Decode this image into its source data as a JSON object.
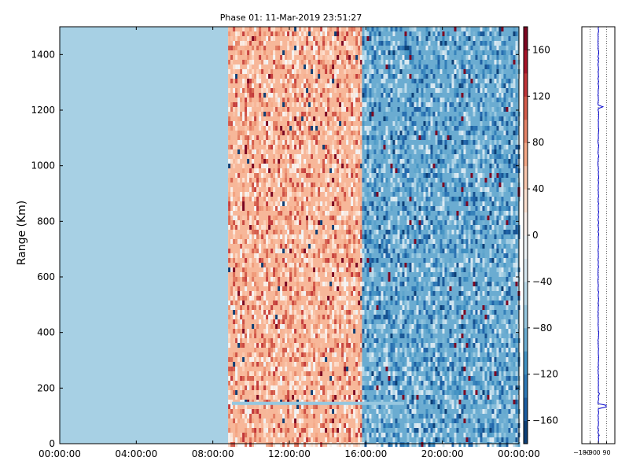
{
  "chart_data": [
    {
      "type": "heatmap",
      "title": "Phase 01: 11-Mar-2019 23:51:27",
      "ylabel": "Range (Km)",
      "xlabel": "",
      "x_tick_labels": [
        "00:00:00",
        "04:00:00",
        "08:00:00",
        "12:00:00",
        "16:00:00",
        "20:00:00",
        "00:00:00"
      ],
      "y_ticks": [
        0,
        200,
        400,
        600,
        800,
        1000,
        1200,
        1400
      ],
      "ylim": [
        0,
        1500
      ],
      "xlim_hours": [
        0,
        24
      ],
      "colorbar": {
        "colormap": "RdBu_r",
        "range": [
          -180,
          180
        ],
        "ticks": [
          -160,
          -120,
          -80,
          -40,
          0,
          40,
          80,
          120,
          160
        ]
      },
      "regions": [
        {
          "x_hours": [
            0,
            8.8
          ],
          "range_km": [
            0,
            1500
          ],
          "phase_mean": -60,
          "description": "uniform light blue"
        },
        {
          "x_hours": [
            8.8,
            15.8
          ],
          "range_km": [
            0,
            1500
          ],
          "phase_mean": 60,
          "description": "noisy, mostly red"
        },
        {
          "x_hours": [
            15.8,
            24
          ],
          "range_km": [
            0,
            1500
          ],
          "phase_mean": -90,
          "description": "noisy blue"
        }
      ],
      "features": [
        {
          "x_hours": [
            9.0,
            18.0
          ],
          "range_km": 145,
          "phase": -70,
          "description": "horizontal light-blue line"
        }
      ],
      "grid": false
    },
    {
      "type": "line",
      "xlim": [
        -180,
        180
      ],
      "x_tick_labels": [
        "−180",
        "−90",
        "0",
        "90"
      ],
      "ylim": [
        0,
        1500
      ],
      "series": [
        {
          "color": "#0000cc",
          "baseline_phase": 0,
          "spikes": [
            {
              "range_km": 1210,
              "phase": 50
            },
            {
              "range_km": 135,
              "phase": 85
            },
            {
              "range_km": 180,
              "phase": 12
            },
            {
              "range_km": 30,
              "phase": 10
            }
          ]
        }
      ],
      "grid": "vertical dotted"
    }
  ]
}
